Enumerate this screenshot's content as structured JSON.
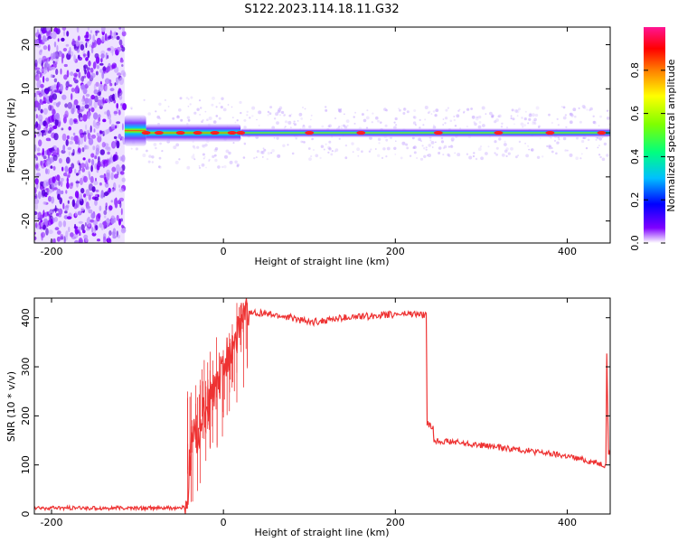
{
  "figure_title": "S122.2023.114.18.11.G32",
  "colors": {
    "snr_line": "#ee3333",
    "axis": "#000000",
    "background": "#ffffff",
    "colormap": [
      "#ffffff",
      "#7f00ff",
      "#0000ff",
      "#00bfff",
      "#00ff7f",
      "#7fff00",
      "#ffff00",
      "#ff7f00",
      "#ff0000",
      "#ff1493"
    ]
  },
  "chart_data": [
    {
      "type": "heatmap",
      "xlabel": "Height of straight line (km)",
      "ylabel": "Frequency (Hz)",
      "xlim": [
        -220,
        450
      ],
      "ylim": [
        -25,
        24
      ],
      "x_ticks": [
        -200,
        0,
        200,
        400
      ],
      "y_ticks": [
        -20,
        -10,
        0,
        10,
        20
      ],
      "grid": false,
      "colorbar": {
        "label": "Normalized spectral amplitude",
        "range": [
          0,
          1
        ],
        "ticks": [
          0.0,
          0.2,
          0.4,
          0.6,
          0.8
        ]
      },
      "regions": [
        {
          "x": [
            -220,
            -115
          ],
          "freq_hz": [
            -25,
            24
          ],
          "amplitude": 0.05
        },
        {
          "x": [
            -115,
            -90
          ],
          "freq_hz": [
            -3,
            4
          ],
          "amplitude": 0.6
        },
        {
          "x": [
            -90,
            20
          ],
          "freq_hz": [
            -2,
            2
          ],
          "amplitude": 0.8
        },
        {
          "x": [
            20,
            450
          ],
          "freq_hz": [
            -1,
            1
          ],
          "amplitude": 0.85
        }
      ]
    },
    {
      "type": "line",
      "xlabel": "Height of straight line (km)",
      "ylabel": "SNR (10 * v/v)",
      "xlim": [
        -220,
        450
      ],
      "ylim": [
        0,
        440
      ],
      "x_ticks": [
        -200,
        0,
        200,
        400
      ],
      "y_ticks": [
        0,
        100,
        200,
        300,
        400
      ],
      "grid": false,
      "series": [
        {
          "x": [
            -220,
            -150,
            -100,
            -50,
            -42,
            -38,
            -35,
            -30,
            -25,
            -20,
            -15,
            -10,
            -5,
            0,
            5,
            10,
            15,
            20,
            25,
            30,
            40,
            60,
            80,
            100,
            120,
            140,
            160,
            180,
            200,
            220,
            236,
            237,
            240,
            244,
            245,
            260,
            300,
            350,
            400,
            445,
            446,
            448,
            450
          ],
          "y": [
            12,
            12,
            12,
            12,
            15,
            140,
            150,
            160,
            190,
            210,
            230,
            250,
            270,
            295,
            320,
            345,
            365,
            385,
            400,
            410,
            410,
            405,
            400,
            390,
            395,
            400,
            402,
            405,
            407,
            408,
            405,
            185,
            180,
            175,
            150,
            148,
            140,
            130,
            118,
            100,
            330,
            125,
            120
          ]
        }
      ]
    }
  ]
}
